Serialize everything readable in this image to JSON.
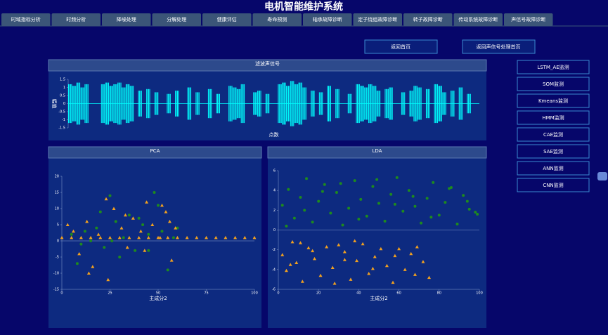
{
  "header": {
    "title": "电机智能维护系统"
  },
  "tabs": [
    "时域指标分析",
    "时频分析",
    "降噪处理",
    "分解处理",
    "健康评估",
    "寿命预测",
    "轴承故障诊断",
    "定子绕组故障诊断",
    "转子故障诊断",
    "传动系统故障诊断",
    "声信号故障诊断"
  ],
  "buttons": [
    "返回首页",
    "返回声信号处理首页"
  ],
  "side_buttons": [
    "LSTM_AE监测",
    "SOM监测",
    "Kmeans监测",
    "HMM监测",
    "CAE监测",
    "SAE监测",
    "ANN监测",
    "CNN监测"
  ],
  "chart_data": [
    {
      "type": "signal",
      "title": "滤波声信号",
      "xlabel": "点数",
      "ylabel": "幅值",
      "color": "#00ffff",
      "values": [
        1.2,
        1.1,
        1.3,
        1.0,
        1.2,
        0,
        0,
        0,
        1.2,
        1.3,
        1.1,
        1.2,
        1.3,
        1.0,
        1.2,
        1.1,
        0,
        0.8,
        0,
        0.9,
        0,
        0.7,
        0,
        0,
        0.6,
        0,
        0.8,
        0,
        0,
        1.0,
        0,
        0.7,
        0,
        0,
        0.9,
        0,
        0.6,
        0,
        0,
        1.1,
        1.0,
        0.9,
        1.2,
        0,
        0,
        0.7,
        0.8,
        0,
        0.6,
        0,
        0,
        1.2,
        1.3,
        1.1,
        1.4,
        1.2,
        1.3,
        1.0,
        0,
        0.8,
        0,
        0.7,
        0,
        1.1,
        0,
        0.9,
        0,
        0,
        0.6,
        0,
        1.2,
        1.1,
        1.0,
        1.2,
        1.1,
        0.8,
        0,
        0.9,
        1.0,
        0,
        0,
        0.7,
        0,
        0.8,
        1.1,
        1.0,
        0,
        0.9,
        0,
        1.2,
        1.1,
        0.7,
        0,
        0.8,
        0,
        1.0,
        0,
        0.6,
        0,
        0
      ],
      "ylim": [
        -1.5,
        1.5
      ],
      "yticks": [
        1.5,
        1,
        0.5,
        0,
        -0.5,
        -1,
        -1.5
      ]
    },
    {
      "type": "scatter",
      "title": "PCA",
      "xlabel": "主成分2",
      "xlim": [
        0,
        100
      ],
      "xticks": [
        0,
        25,
        50,
        75,
        100
      ],
      "ylim": [
        -15,
        20
      ],
      "yticks": [
        20,
        15,
        10,
        5,
        0,
        -5,
        -10,
        -15
      ],
      "series": [
        {
          "color": "#1e8a1e",
          "marker": "circle",
          "x": [
            5,
            8,
            12,
            15,
            18,
            22,
            25,
            28,
            32,
            35,
            38,
            42,
            45,
            48,
            52,
            55,
            58,
            60,
            20,
            30,
            40,
            10,
            50,
            45,
            26
          ],
          "y": [
            2,
            -7,
            3,
            0,
            4,
            -2,
            14,
            6,
            1,
            8,
            -3,
            5,
            2,
            15,
            3,
            -9,
            1,
            4,
            9,
            -5,
            7,
            -1,
            11,
            -3,
            0
          ]
        },
        {
          "color": "#f0a020",
          "marker": "triangle",
          "x": [
            3,
            6,
            9,
            13,
            16,
            19,
            23,
            27,
            31,
            34,
            37,
            41,
            44,
            47,
            51,
            54,
            57,
            59,
            24,
            33,
            43,
            52,
            56,
            14,
            0,
            5,
            10,
            15,
            20,
            25,
            30,
            35,
            40,
            45,
            50,
            55,
            60,
            65,
            70,
            75,
            80,
            85,
            90,
            95,
            100
          ],
          "y": [
            5,
            3,
            -4,
            6,
            -8,
            2,
            13,
            10,
            4,
            -2,
            7,
            3,
            12,
            5,
            1,
            9,
            -6,
            4,
            -12,
            8,
            -3,
            11,
            6,
            -10,
            1,
            1,
            1,
            1,
            1,
            1,
            1,
            1,
            1,
            1,
            1,
            1,
            1,
            1,
            1,
            1,
            1,
            1,
            1,
            1,
            1
          ]
        }
      ]
    },
    {
      "type": "scatter",
      "title": "LDA",
      "xlabel": "主成分2",
      "xlim": [
        0,
        100
      ],
      "xticks": [
        0,
        20,
        40,
        60,
        80,
        100
      ],
      "ylim": [
        -6,
        6
      ],
      "yticks": [
        6,
        4,
        2,
        0,
        -2,
        -4,
        -6
      ],
      "series": [
        {
          "color": "#1e8a1e",
          "marker": "circle",
          "x": [
            2,
            5,
            8,
            11,
            14,
            17,
            20,
            23,
            26,
            29,
            32,
            35,
            38,
            41,
            44,
            47,
            50,
            53,
            56,
            59,
            62,
            65,
            68,
            71,
            74,
            77,
            80,
            83,
            86,
            89,
            92,
            95,
            98,
            4,
            13,
            22,
            31,
            40,
            49,
            58,
            67,
            76,
            85,
            94,
            99
          ],
          "y": [
            2.5,
            4.1,
            1.2,
            3.3,
            5.2,
            0.8,
            2.9,
            4.6,
            1.7,
            3.8,
            0.5,
            2.2,
            5.0,
            3.1,
            1.4,
            4.4,
            2.7,
            0.9,
            3.6,
            5.3,
            1.9,
            4.0,
            2.4,
            0.7,
            3.2,
            4.8,
            1.5,
            2.8,
            4.3,
            0.6,
            3.5,
            2.1,
            1.8,
            0.4,
            2.0,
            3.9,
            4.7,
            1.1,
            5.1,
            2.6,
            3.4,
            1.3,
            4.2,
            2.9,
            1.6
          ]
        },
        {
          "color": "#f0a020",
          "marker": "triangle",
          "x": [
            2,
            4,
            7,
            9,
            12,
            15,
            18,
            21,
            24,
            27,
            30,
            33,
            36,
            39,
            42,
            45,
            48,
            51,
            54,
            57,
            60,
            63,
            66,
            69,
            72,
            75,
            6,
            17,
            28,
            38,
            47,
            58,
            68,
            11,
            33
          ],
          "y": [
            -2.5,
            -4.1,
            -1.2,
            -3.3,
            -5.2,
            -1.8,
            -2.9,
            -4.6,
            -1.7,
            -3.8,
            -1.5,
            -2.2,
            -5.0,
            -3.1,
            -1.4,
            -4.4,
            -2.7,
            -1.9,
            -3.6,
            -5.3,
            -1.9,
            -4.0,
            -2.4,
            -1.7,
            -3.2,
            -4.8,
            -3.5,
            -2.1,
            -5.4,
            -1.1,
            -3.9,
            -2.6,
            -4.5,
            -1.3,
            -3.0
          ]
        }
      ]
    }
  ]
}
